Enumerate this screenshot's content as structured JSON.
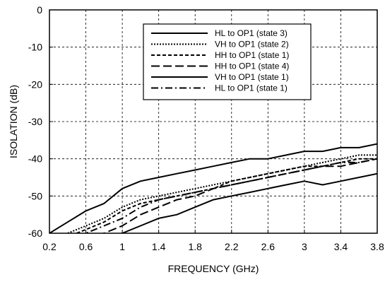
{
  "chart_data": {
    "type": "line",
    "xlabel": "FREQUENCY (GHz)",
    "ylabel": "ISOLATION (dB)",
    "xlim": [
      0.2,
      3.8
    ],
    "ylim": [
      -60,
      0
    ],
    "xticks": [
      "0.2",
      "0.6",
      "1",
      "1.4",
      "1.8",
      "2.2",
      "2.6",
      "3",
      "3.4",
      "3.8"
    ],
    "yticks": [
      "0",
      "-10",
      "-20",
      "-30",
      "-40",
      "-50",
      "-60"
    ],
    "grid": true,
    "legend_position": "top-right",
    "series": [
      {
        "name": "HL to OP1 (state 3)",
        "style": "solid",
        "x": [
          0.2,
          0.4,
          0.6,
          0.8,
          1.0,
          1.2,
          1.4,
          1.6,
          1.8,
          2.0,
          2.2,
          2.4,
          2.6,
          2.8,
          3.0,
          3.2,
          3.4,
          3.6,
          3.8
        ],
        "y": [
          -60,
          -57,
          -54,
          -52,
          -48,
          -46,
          -45,
          -44,
          -43,
          -42,
          -41,
          -40,
          -40,
          -39,
          -38,
          -38,
          -37,
          -37,
          -36
        ]
      },
      {
        "name": "VH to OP1 (state 2)",
        "style": "dotted",
        "x": [
          0.2,
          0.4,
          0.6,
          0.8,
          1.0,
          1.2,
          1.4,
          1.6,
          1.8,
          2.0,
          2.2,
          2.4,
          2.6,
          2.8,
          3.0,
          3.2,
          3.4,
          3.6,
          3.8
        ],
        "y": [
          -62,
          -60,
          -58,
          -56,
          -53,
          -51,
          -50,
          -49,
          -48,
          -47,
          -46,
          -45,
          -44,
          -43,
          -42,
          -41,
          -40,
          -39,
          -39
        ]
      },
      {
        "name": "HH to OP1 (state 1)",
        "style": "dashed",
        "x": [
          0.2,
          0.4,
          0.6,
          0.8,
          1.0,
          1.2,
          1.4,
          1.6,
          1.8,
          2.0,
          2.2,
          2.4,
          2.6,
          2.8,
          3.0,
          3.2,
          3.4,
          3.6,
          3.8
        ],
        "y": [
          -62,
          -61,
          -59,
          -57,
          -54,
          -52,
          -51,
          -50,
          -49,
          -48,
          -46,
          -45,
          -44,
          -43,
          -42,
          -42,
          -41,
          -40,
          -40
        ]
      },
      {
        "name": "HH to OP1 (state 4)",
        "style": "long-dash",
        "x": [
          0.2,
          0.4,
          0.6,
          0.8,
          1.0,
          1.2,
          1.4,
          1.6,
          1.8,
          2.0,
          2.2,
          2.4,
          2.6,
          2.8,
          3.0,
          3.2,
          3.4,
          3.6,
          3.8
        ],
        "y": [
          -62,
          -62,
          -61,
          -60,
          -58,
          -55,
          -53,
          -51,
          -50,
          -48,
          -47,
          -46,
          -45,
          -44,
          -43,
          -42,
          -42,
          -41,
          -40
        ]
      },
      {
        "name": "VH to OP1 (state 1)",
        "style": "solid",
        "x": [
          0.2,
          0.4,
          0.6,
          0.8,
          1.0,
          1.2,
          1.4,
          1.6,
          1.8,
          2.0,
          2.2,
          2.4,
          2.6,
          2.8,
          3.0,
          3.2,
          3.4,
          3.6,
          3.8
        ],
        "y": [
          -62,
          -62,
          -62,
          -61,
          -60,
          -58,
          -56,
          -55,
          -53,
          -51,
          -50,
          -49,
          -48,
          -47,
          -46,
          -47,
          -46,
          -45,
          -44
        ]
      },
      {
        "name": "HL to OP1 (state 1)",
        "style": "dash-dot",
        "x": [
          0.2,
          0.4,
          0.6,
          0.8,
          1.0,
          1.2,
          1.4,
          1.6,
          1.8,
          2.0,
          2.2,
          2.4,
          2.6,
          2.8,
          3.0,
          3.2,
          3.4,
          3.6,
          3.8
        ],
        "y": [
          -62,
          -61,
          -60,
          -58,
          -56,
          -53,
          -51,
          -50,
          -49,
          -48,
          -47,
          -46,
          -45,
          -44,
          -43,
          -42,
          -41,
          -41,
          -40
        ]
      }
    ]
  }
}
